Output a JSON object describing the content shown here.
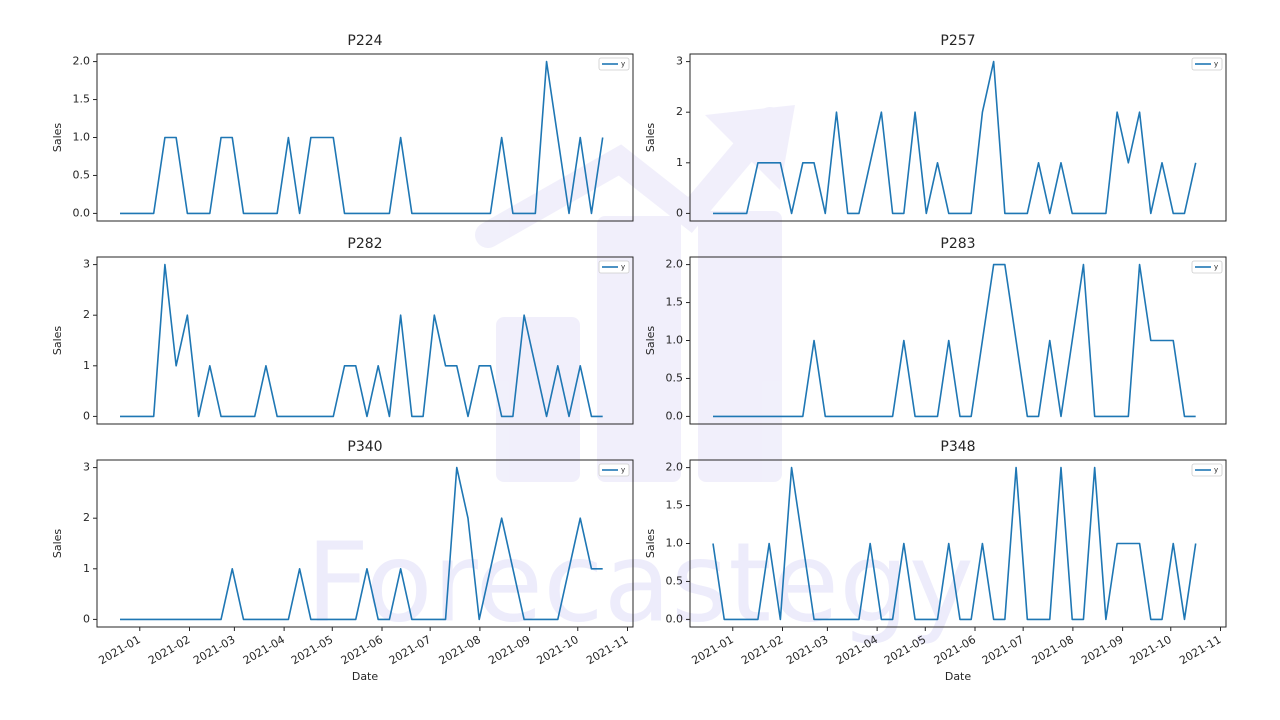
{
  "watermark": "Forecastegy",
  "chart_data": [
    {
      "type": "line",
      "title": "P224",
      "ylabel": "Sales",
      "legend": "upper right",
      "series": [
        {
          "name": "y",
          "color": "#1f77b4",
          "values": [
            0,
            0,
            0,
            0,
            1,
            1,
            0,
            0,
            0,
            1,
            1,
            0,
            0,
            0,
            0,
            1,
            0,
            1,
            1,
            1,
            0,
            0,
            0,
            0,
            0,
            1,
            0,
            0,
            0,
            0,
            0,
            0,
            0,
            0,
            1,
            0,
            0,
            0,
            2,
            1,
            0,
            1,
            0,
            1
          ]
        }
      ],
      "xlim": [
        -2.05,
        45.7
      ],
      "ylim": [
        -0.1,
        2.1
      ],
      "yticks": [
        {
          "value": 0,
          "label": "0.0"
        },
        {
          "value": 0.5,
          "label": "0.5"
        },
        {
          "value": 1,
          "label": "1.0"
        },
        {
          "value": 1.5,
          "label": "1.5"
        },
        {
          "value": 2,
          "label": "2.0"
        }
      ]
    },
    {
      "type": "line",
      "title": "P257",
      "ylabel": "Sales",
      "legend": "upper right",
      "series": [
        {
          "name": "y",
          "color": "#1f77b4",
          "values": [
            0,
            0,
            0,
            0,
            1,
            1,
            1,
            0,
            1,
            1,
            0,
            2,
            0,
            0,
            1,
            2,
            0,
            0,
            2,
            0,
            1,
            0,
            0,
            0,
            2,
            3,
            0,
            0,
            0,
            1,
            0,
            1,
            0,
            0,
            0,
            0,
            2,
            1,
            2,
            0,
            1,
            0,
            0,
            1
          ]
        }
      ],
      "xlim": [
        -2.05,
        45.7
      ],
      "ylim": [
        -0.15,
        3.15
      ],
      "yticks": [
        0,
        1,
        2,
        3
      ]
    },
    {
      "type": "line",
      "title": "P282",
      "ylabel": "Sales",
      "legend": "upper right",
      "series": [
        {
          "name": "y",
          "color": "#1f77b4",
          "values": [
            0,
            0,
            0,
            0,
            3,
            1,
            2,
            0,
            1,
            0,
            0,
            0,
            0,
            1,
            0,
            0,
            0,
            0,
            0,
            0,
            1,
            1,
            0,
            1,
            0,
            2,
            0,
            0,
            2,
            1,
            1,
            0,
            1,
            1,
            0,
            0,
            2,
            1,
            0,
            1,
            0,
            1,
            0,
            0
          ]
        }
      ],
      "xlim": [
        -2.05,
        45.7
      ],
      "ylim": [
        -0.15,
        3.15
      ],
      "yticks": [
        0,
        1,
        2,
        3
      ]
    },
    {
      "type": "line",
      "title": "P283",
      "ylabel": "Sales",
      "legend": "upper right",
      "series": [
        {
          "name": "y",
          "color": "#1f77b4",
          "values": [
            0,
            0,
            0,
            0,
            0,
            0,
            0,
            0,
            0,
            1,
            0,
            0,
            0,
            0,
            0,
            0,
            0,
            1,
            0,
            0,
            0,
            1,
            0,
            0,
            1,
            2,
            2,
            1,
            0,
            0,
            1,
            0,
            1,
            2,
            0,
            0,
            0,
            0,
            2,
            1,
            1,
            1,
            0,
            0
          ]
        }
      ],
      "xlim": [
        -2.05,
        45.7
      ],
      "ylim": [
        -0.1,
        2.1
      ],
      "yticks": [
        {
          "value": 0,
          "label": "0.0"
        },
        {
          "value": 0.5,
          "label": "0.5"
        },
        {
          "value": 1,
          "label": "1.0"
        },
        {
          "value": 1.5,
          "label": "1.5"
        },
        {
          "value": 2,
          "label": "2.0"
        }
      ]
    },
    {
      "type": "line",
      "title": "P340",
      "ylabel": "Sales",
      "xlabel": "Date",
      "legend": "upper right",
      "series": [
        {
          "name": "y",
          "color": "#1f77b4",
          "values": [
            0,
            0,
            0,
            0,
            0,
            0,
            0,
            0,
            0,
            0,
            1,
            0,
            0,
            0,
            0,
            0,
            1,
            0,
            0,
            0,
            0,
            0,
            1,
            0,
            0,
            1,
            0,
            0,
            0,
            0,
            3,
            2,
            0,
            1,
            2,
            1,
            0,
            0,
            0,
            0,
            1,
            2,
            1,
            1
          ]
        }
      ],
      "xlim": [
        -2.05,
        45.7
      ],
      "ylim": [
        -0.15,
        3.15
      ],
      "yticks": [
        0,
        1,
        2,
        3
      ],
      "xticks": [
        {
          "value": 1.76,
          "label": "2021-01"
        },
        {
          "value": 6.19,
          "label": "2021-02"
        },
        {
          "value": 10.19,
          "label": "2021-03"
        },
        {
          "value": 14.62,
          "label": "2021-04"
        },
        {
          "value": 18.91,
          "label": "2021-05"
        },
        {
          "value": 23.34,
          "label": "2021-06"
        },
        {
          "value": 27.63,
          "label": "2021-07"
        },
        {
          "value": 32.06,
          "label": "2021-08"
        },
        {
          "value": 36.49,
          "label": "2021-09"
        },
        {
          "value": 40.78,
          "label": "2021-10"
        },
        {
          "value": 45.21,
          "label": "2021-11"
        }
      ]
    },
    {
      "type": "line",
      "title": "P348",
      "ylabel": "Sales",
      "xlabel": "Date",
      "legend": "upper right",
      "series": [
        {
          "name": "y",
          "color": "#1f77b4",
          "values": [
            1,
            0,
            0,
            0,
            0,
            1,
            0,
            2,
            1,
            0,
            0,
            0,
            0,
            0,
            1,
            0,
            0,
            1,
            0,
            0,
            0,
            1,
            0,
            0,
            1,
            0,
            0,
            2,
            0,
            0,
            0,
            2,
            0,
            0,
            2,
            0,
            1,
            1,
            1,
            0,
            0,
            1,
            0,
            1
          ]
        }
      ],
      "xlim": [
        -2.05,
        45.7
      ],
      "ylim": [
        -0.1,
        2.1
      ],
      "yticks": [
        {
          "value": 0,
          "label": "0.0"
        },
        {
          "value": 0.5,
          "label": "0.5"
        },
        {
          "value": 1,
          "label": "1.0"
        },
        {
          "value": 1.5,
          "label": "1.5"
        },
        {
          "value": 2,
          "label": "2.0"
        }
      ],
      "xticks": [
        {
          "value": 1.76,
          "label": "2021-01"
        },
        {
          "value": 6.19,
          "label": "2021-02"
        },
        {
          "value": 10.19,
          "label": "2021-03"
        },
        {
          "value": 14.62,
          "label": "2021-04"
        },
        {
          "value": 18.91,
          "label": "2021-05"
        },
        {
          "value": 23.34,
          "label": "2021-06"
        },
        {
          "value": 27.63,
          "label": "2021-07"
        },
        {
          "value": 32.06,
          "label": "2021-08"
        },
        {
          "value": 36.49,
          "label": "2021-09"
        },
        {
          "value": 40.78,
          "label": "2021-10"
        },
        {
          "value": 45.21,
          "label": "2021-11"
        }
      ]
    }
  ]
}
